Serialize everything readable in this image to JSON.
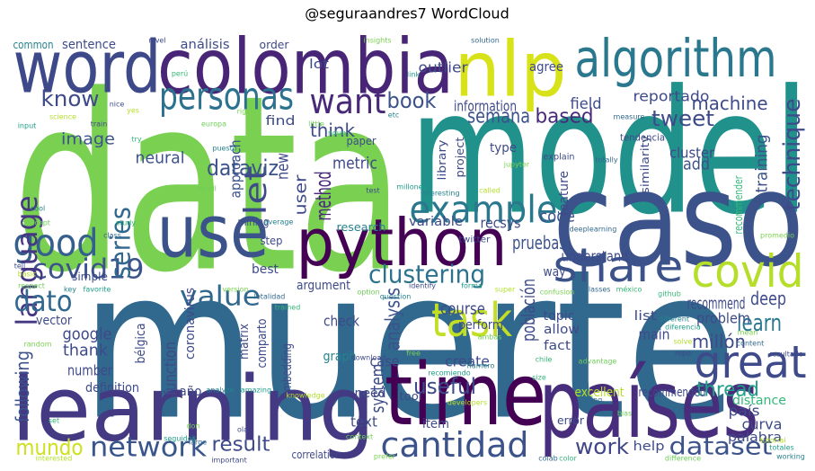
{
  "chart_data": {
    "type": "wordcloud",
    "title": "@seguraandres7 WordCloud",
    "words": [
      "data",
      "model",
      "muerte",
      "caso",
      "learning",
      "time",
      "países",
      "colombia",
      "word",
      "nlp",
      "algorithm",
      "use",
      "python",
      "personas",
      "want",
      "example",
      "share",
      "covid",
      "great",
      "task",
      "good",
      "covid19",
      "language",
      "dato",
      "value",
      "cantidad",
      "network",
      "result",
      "mundo",
      "dataset",
      "work",
      "clustering",
      "series",
      "let",
      "dataviz",
      "book",
      "semana",
      "based",
      "tweet",
      "machine",
      "reportado",
      "field",
      "know",
      "image",
      "neural",
      "think",
      "method",
      "user",
      "new",
      "approach",
      "technique",
      "training",
      "recommender",
      "add",
      "cluster",
      "information",
      "metric",
      "code",
      "recsys",
      "variable",
      "research",
      "pruebas",
      "understand",
      "recommend",
      "deep",
      "learn",
      "problem",
      "población",
      "millón",
      "analysis",
      "system",
      "useful",
      "course",
      "perform",
      "create",
      "case",
      "graph",
      "check",
      "argument",
      "need",
      "tool",
      "text",
      "item",
      "topic",
      "allow",
      "fact",
      "list",
      "main",
      "way",
      "thread",
      "distance",
      "país",
      "recommended",
      "excellent",
      "curva",
      "palabra",
      "error",
      "help",
      "correlation",
      "año",
      "definition",
      "number",
      "following",
      "thank",
      "google",
      "vector",
      "function",
      "bélgica",
      "coronavirus",
      "matrix",
      "comparto",
      "embedding",
      "best",
      "step",
      "mining",
      "simple",
      "sentence",
      "análisis",
      "order",
      "lot",
      "outlier",
      "agree",
      "common",
      "find",
      "paper",
      "project",
      "library",
      "type",
      "feature",
      "similarity",
      "tendencia",
      "explain",
      "twitter",
      "nivel",
      "insights",
      "solution",
      "perú",
      "europa",
      "puesto",
      "seguidos",
      "interested",
      "important",
      "prefer",
      "colab",
      "color",
      "difference",
      "working",
      "totales",
      "tutorial",
      "resultado",
      "promedio",
      "deeplearning",
      "github",
      "respect",
      "key",
      "favorite",
      "basic",
      "tell",
      "random",
      "class",
      "study",
      "concept",
      "cool",
      "input",
      "science",
      "train",
      "version",
      "letalidad",
      "trained",
      "option",
      "question",
      "forma",
      "super",
      "identify",
      "confusion",
      "classes",
      "méxico",
      "ambas",
      "different",
      "diferencia",
      "solve",
      "repo",
      "mean",
      "content",
      "chile",
      "advantage",
      "número",
      "recomiendo",
      "developers",
      "download",
      "free",
      "thing",
      "size",
      "bias",
      "analyze",
      "amazing",
      "knowledge",
      "ola",
      "don",
      "large",
      "set",
      "context",
      "interesting",
      "millones",
      "called",
      "test",
      "jupyter",
      "totally",
      "noun",
      "little",
      "etc",
      "link",
      "yes",
      "nice",
      "right",
      "measure",
      "try",
      "recall",
      "average"
    ]
  }
}
